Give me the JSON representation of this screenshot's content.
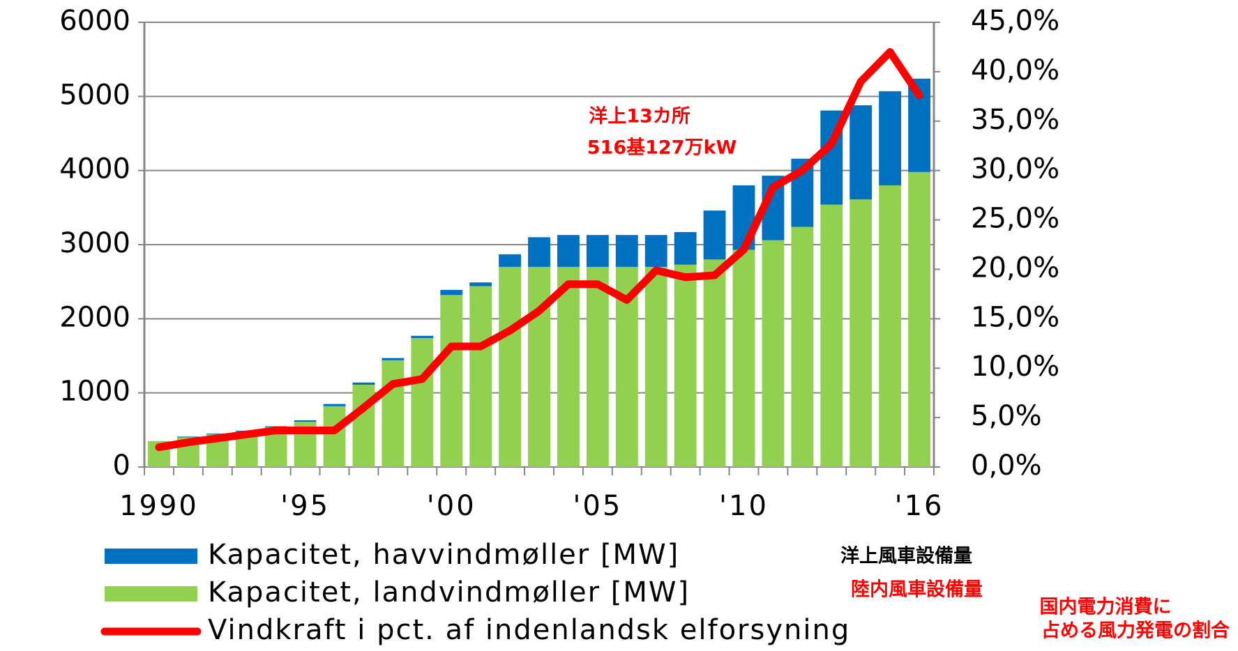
{
  "chart_data": {
    "type": "bar",
    "categories": [
      "1990",
      null,
      null,
      null,
      null,
      "'95",
      null,
      null,
      null,
      null,
      "'00",
      null,
      null,
      null,
      null,
      "'05",
      null,
      null,
      null,
      null,
      "'10",
      null,
      null,
      null,
      null,
      null,
      "'16"
    ],
    "series": [
      {
        "name": "Kapacitet, havvindmøller [MW]",
        "color": "#0070c0",
        "type": "bar",
        "values": [
          0,
          10,
          10,
          10,
          10,
          20,
          30,
          30,
          30,
          30,
          70,
          50,
          170,
          400,
          430,
          430,
          430,
          430,
          440,
          660,
          870,
          870,
          920,
          1270,
          1270,
          1270,
          1260
        ]
      },
      {
        "name": "Kapacitet, landvindmøller [MW]",
        "color": "#92d050",
        "type": "bar",
        "values": [
          350,
          400,
          440,
          480,
          540,
          610,
          820,
          1110,
          1440,
          1740,
          2320,
          2440,
          2700,
          2700,
          2700,
          2700,
          2700,
          2700,
          2730,
          2800,
          2930,
          3060,
          3240,
          3540,
          3610,
          3800,
          3980
        ]
      },
      {
        "name": "Vindkraft i pct. af indenlandsk elforsyning",
        "color": "#ff0000",
        "type": "line",
        "axis": "y2",
        "values": [
          2.0,
          2.5,
          2.9,
          3.3,
          3.7,
          3.7,
          3.7,
          6.0,
          8.4,
          8.9,
          12.2,
          12.2,
          13.8,
          15.8,
          18.5,
          18.5,
          16.9,
          19.9,
          19.2,
          19.4,
          22.0,
          28.3,
          30.0,
          32.7,
          39.0,
          42.0,
          37.6
        ]
      }
    ],
    "ylim": [
      0,
      6000
    ],
    "yticks": [
      0,
      1000,
      2000,
      3000,
      4000,
      5000,
      6000
    ],
    "y2lim": [
      0,
      45
    ],
    "y2ticks": [
      {
        "value": 0,
        "label": "0,0%"
      },
      {
        "value": 5,
        "label": "5,0%"
      },
      {
        "value": 10,
        "label": "10,0%"
      },
      {
        "value": 15,
        "label": "15,0%"
      },
      {
        "value": 20,
        "label": "20,0%"
      },
      {
        "value": 25,
        "label": "25,0%"
      },
      {
        "value": 30,
        "label": "30,0%"
      },
      {
        "value": 35,
        "label": "35,0%"
      },
      {
        "value": 40,
        "label": "40,0%"
      },
      {
        "value": 45,
        "label": "45,0%"
      }
    ],
    "grid": true,
    "legend": "bottom",
    "annotations": [
      "洋上13カ所",
      "516基127万kW"
    ],
    "legend_notes": [
      "洋上風車設備量",
      "陸内風車設備量",
      "国内電力消費に",
      "占める風力発電の割合"
    ]
  }
}
